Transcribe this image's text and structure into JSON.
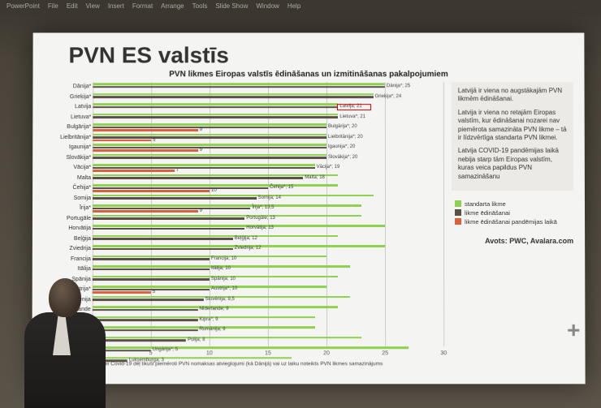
{
  "menubar": [
    "PowerPoint",
    "File",
    "Edit",
    "View",
    "Insert",
    "Format",
    "Arrange",
    "Tools",
    "Slide Show",
    "Window",
    "Help"
  ],
  "slide": {
    "title": "PVN ES valstīs",
    "chart_title": "PVN likmes Eiropas valstīs ēdināšanas un izmitināšanas pakalpojumiem",
    "footnote": "urās ēdināšanas nozarei Covid-19 dēļ tikuši piemēroti PVN nomaksas atvieglojumi (kā Dānijā) vai uz laiku noteikts PVN likmes samazinājums",
    "source": "Avots: PWC, Avalara.com"
  },
  "chart": {
    "type": "bar",
    "xmax": 30,
    "xtick_step": 5,
    "grid_color": "#cccccc",
    "series_colors": {
      "standard": "#8fd14f",
      "catering": "#5a5048",
      "pandemic": "#d9603b"
    },
    "highlight_country": "Latvija",
    "countries": [
      {
        "name": "Dānija*",
        "standard": 25,
        "catering": 25,
        "label": "Dānija*; 25"
      },
      {
        "name": "Grieķija*",
        "standard": 24,
        "catering": 24,
        "label": "Grieķija*; 24"
      },
      {
        "name": "Latvija",
        "standard": 21,
        "catering": 21,
        "label": "Latvija; 21",
        "hl": true
      },
      {
        "name": "Lietuva*",
        "standard": 21,
        "catering": 21,
        "label": "Lietuva*; 21"
      },
      {
        "name": "Bulgārija*",
        "standard": 20,
        "catering": 20,
        "pandemic": 9,
        "label": "Bulgārija*; 20"
      },
      {
        "name": "Lielbritānija*",
        "standard": 20,
        "catering": 20,
        "pandemic": 5,
        "label": "Lielbritānija*; 20"
      },
      {
        "name": "Igaunija*",
        "standard": 20,
        "catering": 20,
        "pandemic": 9,
        "label": "Igaunija*; 20"
      },
      {
        "name": "Slovākija*",
        "standard": 20,
        "catering": 20,
        "label": "Slovākija*; 20"
      },
      {
        "name": "Vācija*",
        "standard": 19,
        "catering": 19,
        "pandemic": 7,
        "label": "Vācija*; 19"
      },
      {
        "name": "Malta",
        "standard": 21,
        "catering": 18,
        "label": "Malta; 18"
      },
      {
        "name": "Čehija*",
        "standard": 21,
        "catering": 15,
        "pandemic": 10,
        "label": "Čehija*; 15"
      },
      {
        "name": "Somija",
        "standard": 24,
        "catering": 14,
        "label": "Somija; 14"
      },
      {
        "name": "Īrija*",
        "standard": 23,
        "catering": 13.5,
        "pandemic": 9,
        "label": "Īrija*; 13,5"
      },
      {
        "name": "Portugāle",
        "standard": 23,
        "catering": 13,
        "label": "Portugāle; 13"
      },
      {
        "name": "Horvātija",
        "standard": 25,
        "catering": 13,
        "label": "Horvātija; 13"
      },
      {
        "name": "Beļģija",
        "standard": 21,
        "catering": 12,
        "label": "Beļģija; 12"
      },
      {
        "name": "Zviedrija",
        "standard": 25,
        "catering": 12,
        "label": "Zviedrija; 12"
      },
      {
        "name": "Francija",
        "standard": 20,
        "catering": 10,
        "label": "Francija; 10"
      },
      {
        "name": "Itālija",
        "standard": 22,
        "catering": 10,
        "label": "Itālija; 10"
      },
      {
        "name": "Spānija",
        "standard": 21,
        "catering": 10,
        "label": "Spānija; 10"
      },
      {
        "name": "Austrija*",
        "standard": 20,
        "catering": 10,
        "pandemic": 5,
        "label": "Austrija*; 10"
      },
      {
        "name": "Slovēnija",
        "standard": 22,
        "catering": 9.5,
        "label": "Slovēnija; 9,5"
      },
      {
        "name": "Nīderlande",
        "standard": 21,
        "catering": 9,
        "label": "Nīderlande; 9"
      },
      {
        "name": "Kipra*",
        "standard": 19,
        "catering": 9,
        "label": "Kipra*; 9"
      },
      {
        "name": "Rumānija",
        "standard": 19,
        "catering": 9,
        "label": "Rumānija; 9"
      },
      {
        "name": "Polija",
        "standard": 23,
        "catering": 8,
        "label": "Polija; 8"
      },
      {
        "name": "Ungārija*",
        "standard": 27,
        "catering": 5,
        "label": "Ungārija*; 5"
      },
      {
        "name": "Luksemburga",
        "standard": 17,
        "catering": 3,
        "label": "Luksemburga; 3"
      }
    ]
  },
  "legend": {
    "items": [
      {
        "color": "#8fd14f",
        "label": "standarta likme"
      },
      {
        "color": "#5a5048",
        "label": "likme ēdināšanai"
      },
      {
        "color": "#d9603b",
        "label": "likme ēdināšanai pandēmijas laikā"
      }
    ]
  },
  "notes": [
    "Latvijā ir viena no augstākajām PVN likmēm ēdināšanai.",
    "Latvija ir viena no retajām Eiropas valstīm, kur ēdināšanai nozarei nav piemērota samazināta PVN likme – tā ir līdzvērtīga standarta PVN likmei.",
    "Latvija COVID-19 pandēmijas laikā nebija starp tām Eiropas valstīm, kuras veica papildus PVN samazināšanu"
  ]
}
